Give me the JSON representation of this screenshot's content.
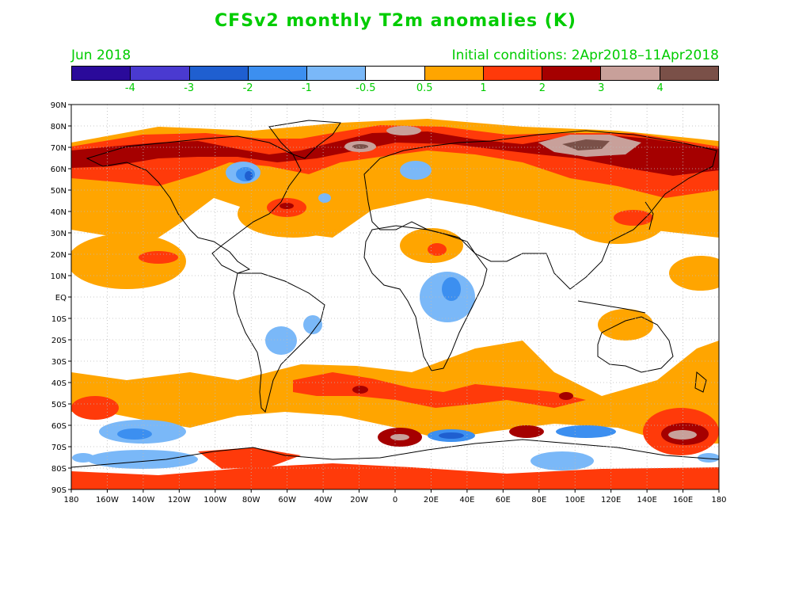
{
  "title": "CFSv2 monthly T2m anomalies (K)",
  "valid_month": "Jun 2018",
  "initial_conditions": "Initial conditions: 2Apr2018–11Apr2018",
  "colorbar": {
    "colors": [
      "#2a0a9a",
      "#4a3ad0",
      "#1f5fd0",
      "#3c8ff0",
      "#7ab8f8",
      "#ffffff",
      "#ffa500",
      "#ff3a0a",
      "#a50000",
      "#c8a09a",
      "#7a5048"
    ],
    "labels": [
      "-4",
      "-3",
      "-2",
      "-1",
      "-0.5",
      "0.5",
      "1",
      "2",
      "3",
      "4"
    ]
  },
  "lat_labels": [
    "90N",
    "80N",
    "70N",
    "60N",
    "50N",
    "40N",
    "30N",
    "20N",
    "10N",
    "EQ",
    "10S",
    "20S",
    "30S",
    "40S",
    "50S",
    "60S",
    "70S",
    "80S",
    "90S"
  ],
  "lon_labels": [
    "180",
    "160W",
    "140W",
    "120W",
    "100W",
    "80W",
    "60W",
    "40W",
    "20W",
    "0",
    "20E",
    "40E",
    "60E",
    "80E",
    "100E",
    "120E",
    "140E",
    "160E",
    "180"
  ],
  "map_colors": {
    "warm1": "#ffa500",
    "warm2": "#ff3a0a",
    "warm3": "#a50000",
    "warm4": "#c8a09a",
    "warm5": "#7a5048",
    "cool1": "#7ab8f8",
    "cool2": "#3c8ff0",
    "cool3": "#1f5fd0",
    "coast": "#000000"
  }
}
